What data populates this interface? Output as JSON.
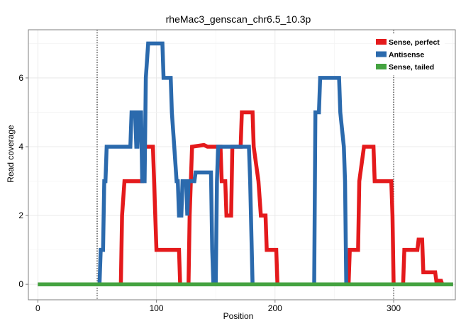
{
  "chart_data": {
    "type": "line",
    "title": "rheMac3_genscan_chr6.5_10.3p",
    "xlabel": "Position",
    "ylabel": "Read coverage",
    "xlim": [
      -8,
      352
    ],
    "ylim": [
      -0.45,
      7.4
    ],
    "xticks": [
      0,
      100,
      200,
      300
    ],
    "yticks": [
      0,
      2,
      4,
      6
    ],
    "grid": true,
    "vlines": [
      50,
      300
    ],
    "legend_position": "top-right",
    "series": [
      {
        "name": "Sense, perfect",
        "color": "#e41a1c",
        "points": [
          [
            0,
            0
          ],
          [
            70,
            0
          ],
          [
            71,
            2
          ],
          [
            73,
            3
          ],
          [
            88,
            3
          ],
          [
            89,
            4
          ],
          [
            97,
            4
          ],
          [
            98,
            3
          ],
          [
            99,
            2
          ],
          [
            100,
            1
          ],
          [
            119,
            1
          ],
          [
            120,
            0
          ],
          [
            127,
            0
          ],
          [
            128,
            2
          ],
          [
            130,
            4
          ],
          [
            140,
            4.05
          ],
          [
            143,
            4
          ],
          [
            154,
            4
          ],
          [
            155,
            3
          ],
          [
            158,
            3
          ],
          [
            159,
            2
          ],
          [
            163,
            2
          ],
          [
            164,
            4
          ],
          [
            171,
            4
          ],
          [
            172,
            5
          ],
          [
            181,
            5
          ],
          [
            182,
            4
          ],
          [
            186,
            3
          ],
          [
            188,
            2
          ],
          [
            192,
            2
          ],
          [
            193,
            1
          ],
          [
            201,
            1
          ],
          [
            202,
            0
          ],
          [
            262,
            0
          ],
          [
            263,
            1
          ],
          [
            270,
            1
          ],
          [
            271,
            3
          ],
          [
            275,
            4
          ],
          [
            283,
            4
          ],
          [
            284,
            3
          ],
          [
            298,
            3
          ],
          [
            299,
            2
          ],
          [
            300,
            0
          ],
          [
            308,
            0
          ],
          [
            309,
            1
          ],
          [
            320,
            1
          ],
          [
            321,
            1.3
          ],
          [
            324,
            1.3
          ],
          [
            325,
            0.35
          ],
          [
            335,
            0.35
          ],
          [
            336,
            0.1
          ],
          [
            340,
            0.1
          ],
          [
            341,
            0
          ],
          [
            350,
            0
          ]
        ]
      },
      {
        "name": "Antisense",
        "color": "#2b6aad",
        "points": [
          [
            0,
            0
          ],
          [
            52,
            0
          ],
          [
            53,
            1
          ],
          [
            55,
            1
          ],
          [
            56,
            3
          ],
          [
            57,
            3
          ],
          [
            58,
            4
          ],
          [
            78,
            4
          ],
          [
            79,
            5
          ],
          [
            82,
            5
          ],
          [
            83,
            4
          ],
          [
            84,
            4
          ],
          [
            85,
            5
          ],
          [
            87,
            5
          ],
          [
            88,
            3
          ],
          [
            90,
            3
          ],
          [
            91,
            6
          ],
          [
            93,
            7
          ],
          [
            105,
            7
          ],
          [
            106,
            6
          ],
          [
            112,
            6
          ],
          [
            113,
            5
          ],
          [
            115,
            4
          ],
          [
            117,
            3
          ],
          [
            118,
            3
          ],
          [
            119,
            2
          ],
          [
            121,
            2
          ],
          [
            122,
            3
          ],
          [
            125,
            3
          ],
          [
            126,
            2
          ],
          [
            127,
            3
          ],
          [
            132,
            3
          ],
          [
            133,
            3.25
          ],
          [
            146,
            3.25
          ],
          [
            147,
            1
          ],
          [
            148,
            0
          ],
          [
            150,
            0
          ],
          [
            151,
            3
          ],
          [
            152,
            4
          ],
          [
            163,
            4
          ],
          [
            164,
            4
          ],
          [
            178,
            4
          ],
          [
            179,
            3
          ],
          [
            181,
            0
          ],
          [
            233,
            0
          ],
          [
            234,
            5
          ],
          [
            237,
            5
          ],
          [
            238,
            6
          ],
          [
            254,
            6
          ],
          [
            255,
            5
          ],
          [
            258,
            4
          ],
          [
            259,
            3
          ],
          [
            260,
            0
          ],
          [
            350,
            0
          ]
        ]
      },
      {
        "name": "Sense, tailed",
        "color": "#44a340",
        "points": [
          [
            0,
            0
          ],
          [
            350,
            0
          ]
        ]
      }
    ]
  }
}
